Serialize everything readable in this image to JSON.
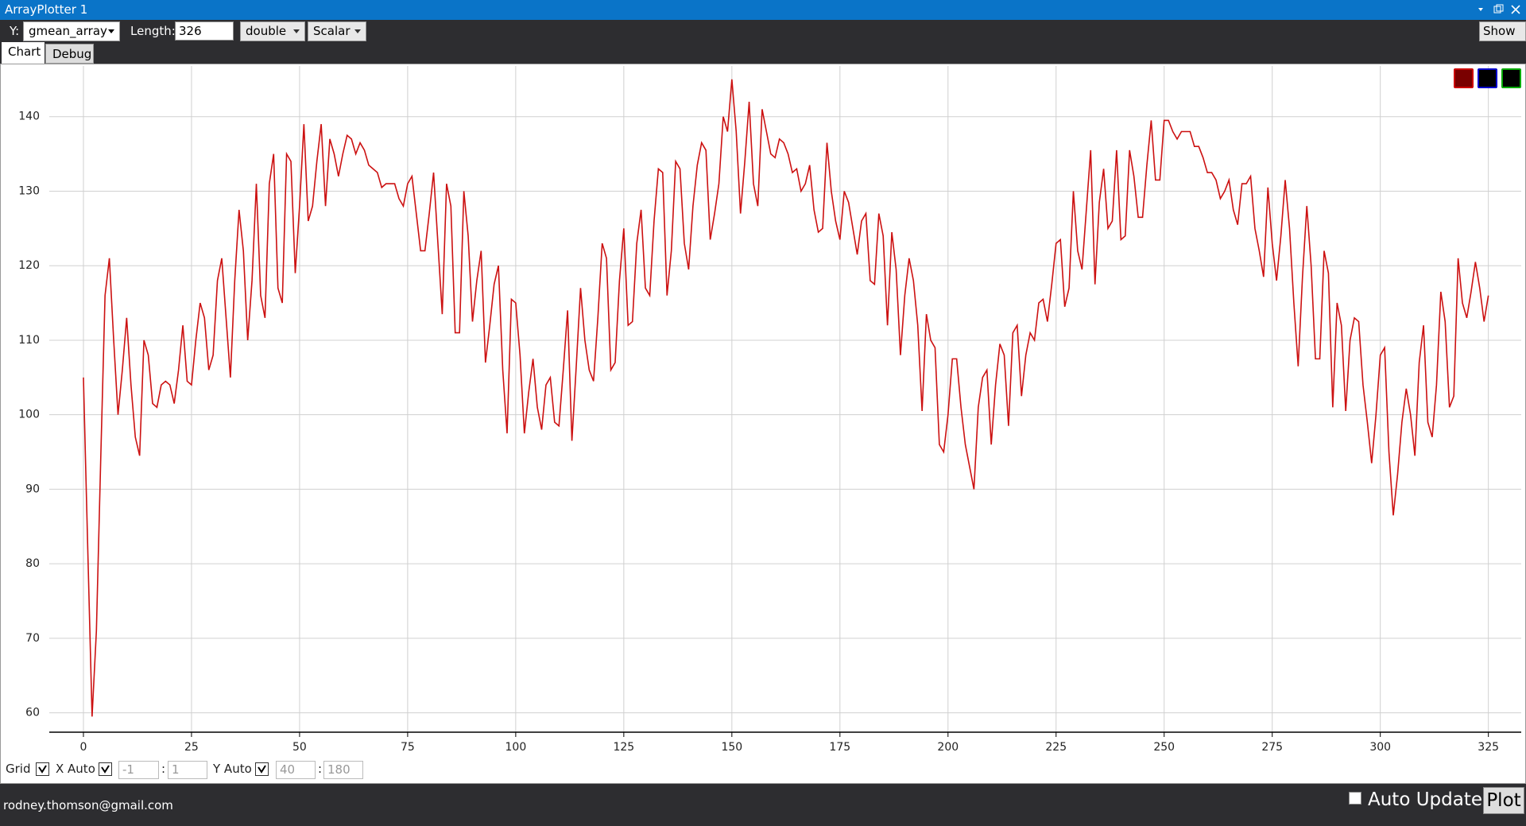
{
  "window": {
    "title": "ArrayPlotter 1"
  },
  "toolbar": {
    "y_label": "Y:",
    "y_select": "gmean_array",
    "length_label": "Length:",
    "length_value": "326",
    "type_select": "double",
    "mode_select": "Scalar",
    "show_x": "Show X"
  },
  "tabs": [
    "Chart",
    "Debug"
  ],
  "chart_data": {
    "type": "line",
    "series": [
      {
        "color": "#cc1111",
        "values": [
          105,
          82,
          59.5,
          71,
          94,
          116,
          121,
          110,
          100,
          106,
          113,
          104,
          97,
          94.5,
          110,
          108,
          101.5,
          101,
          104,
          104.5,
          104,
          101.5,
          106,
          112,
          104.5,
          104,
          110,
          115,
          113,
          106,
          108,
          118,
          121,
          113,
          105,
          118,
          127.5,
          122,
          110,
          118,
          131,
          116,
          113,
          131,
          135,
          117,
          115,
          135,
          134,
          119,
          128,
          139,
          126,
          128,
          134,
          139,
          128,
          137,
          135,
          132,
          135,
          137.5,
          137,
          135,
          136.5,
          135.5,
          133.5,
          133,
          132.5,
          130.5,
          131,
          131,
          131,
          129,
          128,
          131,
          132,
          127,
          122,
          122,
          127,
          132.5,
          123,
          113.5,
          131,
          128,
          111,
          111,
          130,
          124,
          112.5,
          118,
          122,
          107,
          112,
          117.5,
          120,
          106,
          97.5,
          115.5,
          115,
          108,
          97.5,
          103,
          107.5,
          101,
          98,
          104,
          105,
          99,
          98.5,
          106,
          114,
          96.5,
          106.5,
          117,
          110,
          106,
          104.5,
          113,
          123,
          121,
          106,
          107,
          118,
          125,
          112,
          112.5,
          123,
          127.5,
          117,
          116,
          126,
          133,
          132.5,
          116,
          122,
          134,
          133,
          123,
          119.5,
          128,
          133.5,
          136.5,
          135.5,
          123.5,
          127,
          131,
          140,
          138,
          145,
          138,
          127,
          134,
          142,
          131,
          128,
          141,
          138,
          135,
          134.5,
          137,
          136.5,
          135,
          132.5,
          133,
          130,
          131,
          133.5,
          127.5,
          124.5,
          125,
          136.5,
          130,
          126,
          123.5,
          130,
          128.5,
          125,
          121.5,
          126,
          127,
          118,
          117.5,
          127,
          124,
          112,
          124.5,
          119.5,
          108,
          116,
          121,
          118,
          112,
          100.5,
          113.5,
          110,
          109,
          96,
          95,
          100,
          107.5,
          107.5,
          101,
          96,
          93,
          90,
          101,
          105,
          106,
          96,
          104,
          109.5,
          108,
          98.5,
          111,
          112,
          102.5,
          108,
          111,
          110,
          115,
          115.5,
          112.5,
          117.5,
          123,
          123.5,
          114.5,
          117,
          130,
          122,
          119.5,
          127.5,
          135.5,
          117.5,
          128.5,
          133,
          125,
          126,
          135.5,
          123.5,
          124,
          135.5,
          132,
          126.5,
          126.5,
          133.5,
          139.5,
          131.5,
          131.5,
          139.5,
          139.5,
          138,
          137,
          138,
          138,
          138,
          136,
          136,
          134.5,
          132.5,
          132.5,
          131.5,
          129,
          130,
          131.5,
          127.5,
          125.5,
          131,
          131,
          132,
          125,
          122,
          118.5,
          130.5,
          123,
          118,
          124,
          131.5,
          125,
          115,
          106.5,
          118.5,
          128,
          120,
          107.5,
          107.5,
          122,
          119,
          101,
          115,
          112,
          100.5,
          110,
          113,
          112.5,
          104,
          99,
          93.5,
          100,
          108,
          109,
          95,
          86.5,
          92,
          99,
          103.5,
          100,
          94.5,
          107,
          112,
          99,
          97,
          104,
          116.5,
          112.5,
          101,
          102.5,
          121,
          115,
          113,
          116.5,
          120.5,
          117,
          112.5,
          116
        ]
      }
    ],
    "xlim": [
      -7.9,
      332.6
    ],
    "ylim": [
      57.4,
      146.8
    ],
    "xticks": [
      0,
      25,
      50,
      75,
      100,
      125,
      150,
      175,
      200,
      225,
      250,
      275,
      300,
      325
    ],
    "yticks": [
      60,
      70,
      80,
      90,
      100,
      110,
      120,
      130,
      140
    ],
    "grid": true
  },
  "controls": {
    "grid_label": "Grid",
    "x_auto_label": "X Auto",
    "x_min": "-1",
    "x_sep": ":",
    "x_max": "1",
    "y_auto_label": "Y Auto",
    "y_min": "40",
    "y_sep": ":",
    "y_max": "180"
  },
  "status": {
    "email": "rodney.thomson@gmail.com",
    "auto_update": "Auto Update",
    "plot": "Plot"
  }
}
